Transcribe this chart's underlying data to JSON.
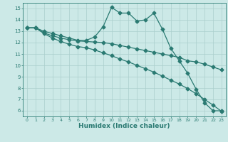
{
  "background_color": "#cce9e7",
  "grid_color": "#aacfcc",
  "line_color": "#2a7a72",
  "xlabel": "Humidex (Indice chaleur)",
  "xlim_min": -0.5,
  "xlim_max": 23.5,
  "ylim_min": 5.5,
  "ylim_max": 15.5,
  "xticks": [
    0,
    1,
    2,
    3,
    4,
    5,
    6,
    7,
    8,
    9,
    10,
    11,
    12,
    13,
    14,
    15,
    16,
    17,
    18,
    19,
    20,
    21,
    22,
    23
  ],
  "yticks": [
    6,
    7,
    8,
    9,
    10,
    11,
    12,
    13,
    14,
    15
  ],
  "line1_x": [
    0,
    1,
    2,
    3,
    4,
    5,
    6,
    7,
    8,
    9,
    10,
    11,
    12,
    13,
    14,
    15,
    16,
    17,
    18,
    19,
    20,
    21,
    22,
    23
  ],
  "line1_y": [
    13.3,
    13.3,
    13.0,
    12.8,
    12.6,
    12.4,
    12.2,
    12.2,
    12.5,
    13.4,
    15.1,
    14.6,
    14.6,
    13.9,
    14.0,
    14.6,
    13.2,
    11.5,
    10.4,
    9.3,
    7.9,
    6.7,
    6.0,
    6.0
  ],
  "line2_x": [
    0,
    1,
    2,
    3,
    4,
    5,
    6,
    7,
    8,
    9,
    10,
    11,
    12,
    13,
    14,
    15,
    16,
    17,
    18,
    19,
    20,
    21,
    22,
    23
  ],
  "line2_y": [
    13.3,
    13.3,
    12.85,
    12.6,
    12.4,
    12.25,
    12.15,
    12.1,
    12.05,
    12.0,
    11.9,
    11.75,
    11.6,
    11.45,
    11.3,
    11.15,
    11.0,
    10.85,
    10.7,
    10.4,
    10.3,
    10.1,
    9.85,
    9.6
  ],
  "line3_x": [
    0,
    1,
    2,
    3,
    4,
    5,
    6,
    7,
    8,
    9,
    10,
    11,
    12,
    13,
    14,
    15,
    16,
    17,
    18,
    19,
    20,
    21,
    22,
    23
  ],
  "line3_y": [
    13.3,
    13.3,
    12.8,
    12.4,
    12.1,
    11.85,
    11.65,
    11.55,
    11.35,
    11.1,
    10.85,
    10.55,
    10.3,
    10.0,
    9.7,
    9.4,
    9.05,
    8.7,
    8.35,
    7.95,
    7.5,
    7.0,
    6.5,
    5.95
  ]
}
